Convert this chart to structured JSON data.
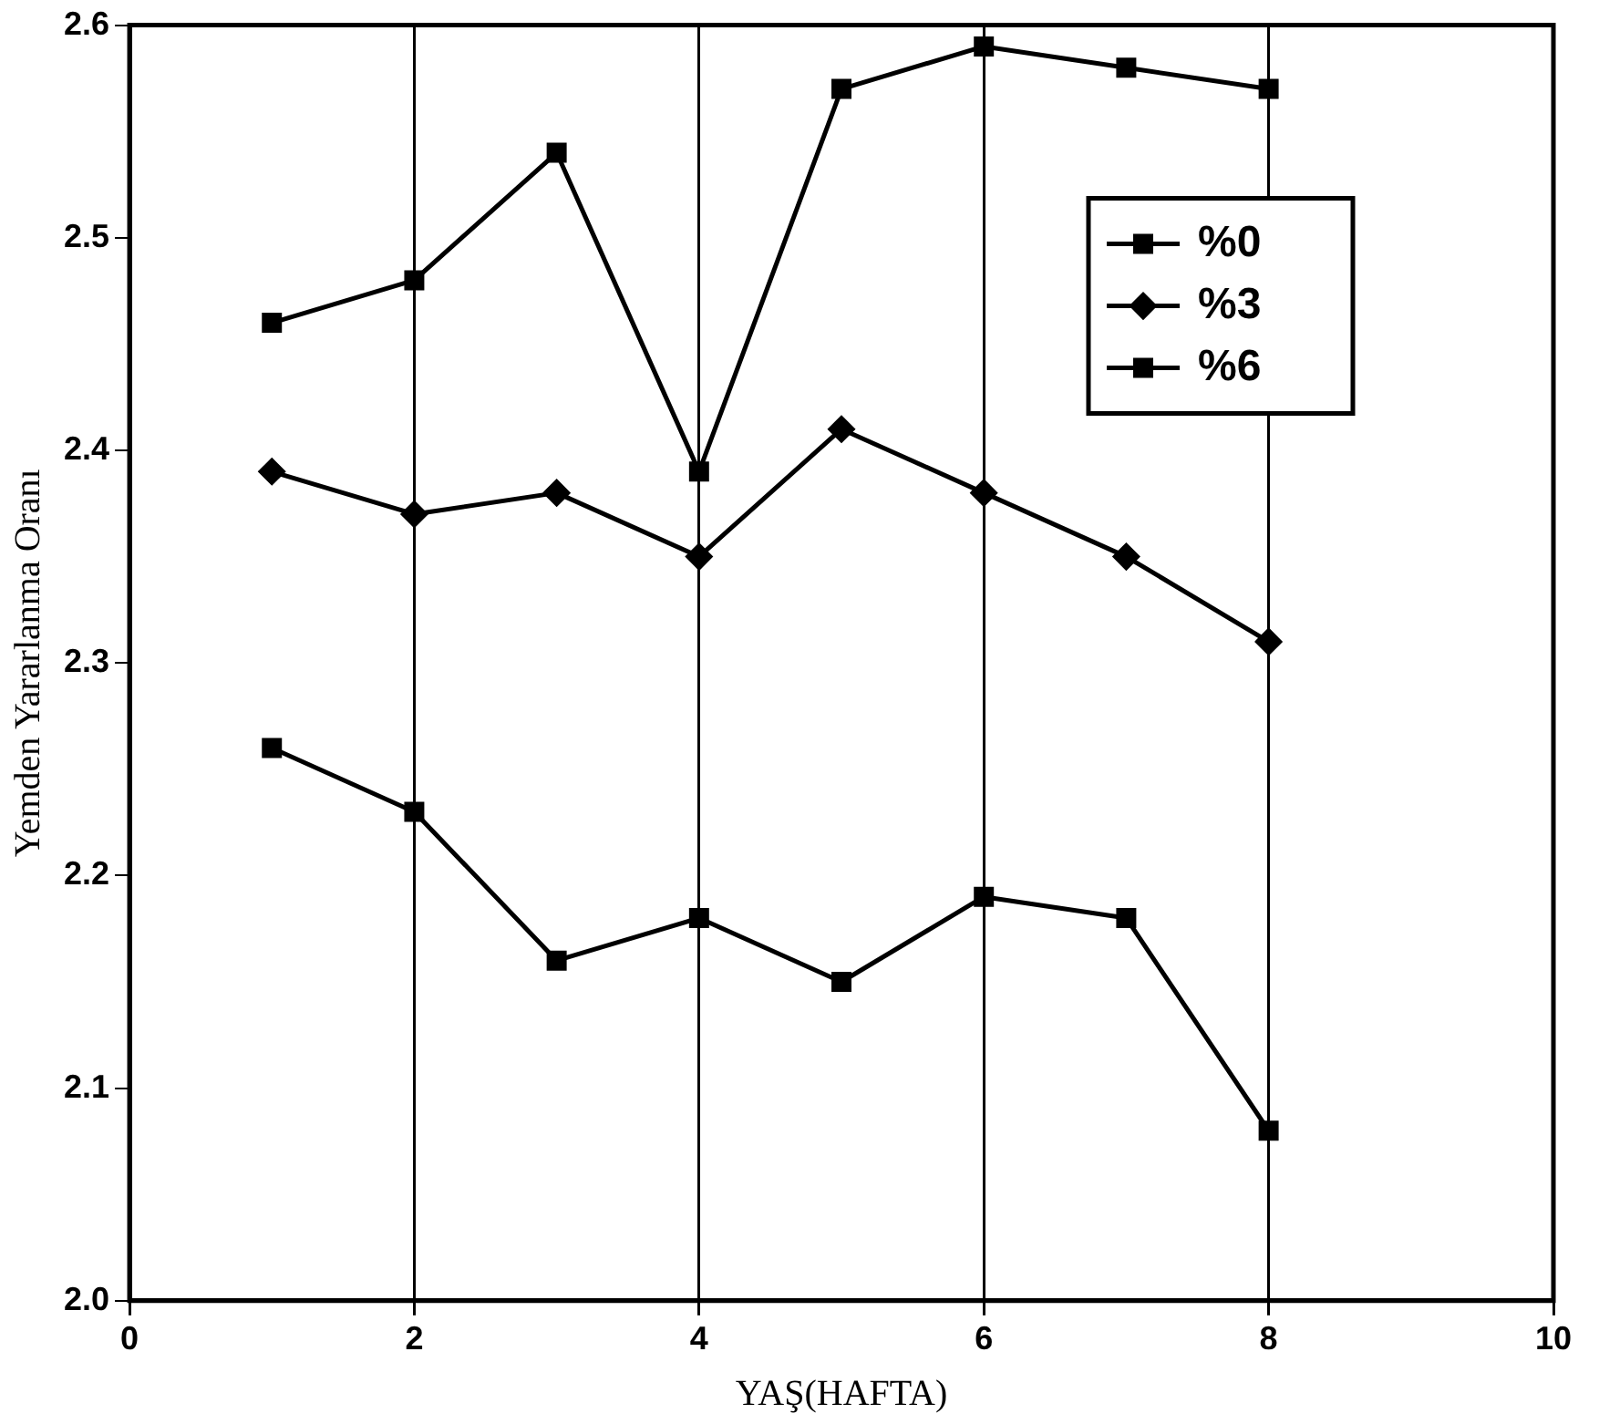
{
  "chart_data": {
    "type": "line",
    "xlabel": "YAŞ(HAFTA)",
    "ylabel": "Yemden Yararlanma Oranı",
    "x": [
      1,
      2,
      3,
      4,
      5,
      6,
      7,
      8
    ],
    "series": [
      {
        "name": "%0",
        "color": "#000000",
        "marker": "square",
        "values": [
          2.46,
          2.48,
          2.54,
          2.39,
          2.57,
          2.59,
          2.58,
          2.57
        ]
      },
      {
        "name": "%3",
        "color": "#000000",
        "marker": "diamond",
        "values": [
          2.39,
          2.37,
          2.38,
          2.35,
          2.41,
          2.38,
          2.35,
          2.31
        ]
      },
      {
        "name": "%6",
        "color": "#000000",
        "marker": "square",
        "values": [
          2.26,
          2.23,
          2.16,
          2.18,
          2.15,
          2.19,
          2.18,
          2.08
        ]
      }
    ],
    "xlim": [
      0,
      10
    ],
    "xticks": [
      0,
      2,
      4,
      6,
      8,
      10
    ],
    "ylim": [
      2.0,
      2.6
    ],
    "yticks": [
      {
        "value": 2,
        "label": "2.0"
      },
      {
        "value": 2.1,
        "label": "2.1"
      },
      {
        "value": 2.2,
        "label": "2.2"
      },
      {
        "value": 2.3,
        "label": "2.3"
      },
      {
        "value": 2.4,
        "label": "2.4"
      },
      {
        "value": 2.5,
        "label": "2.5"
      },
      {
        "value": 2.6,
        "label": "2.6"
      }
    ],
    "grid": "x",
    "legend": "top right",
    "line_style": "solid"
  }
}
